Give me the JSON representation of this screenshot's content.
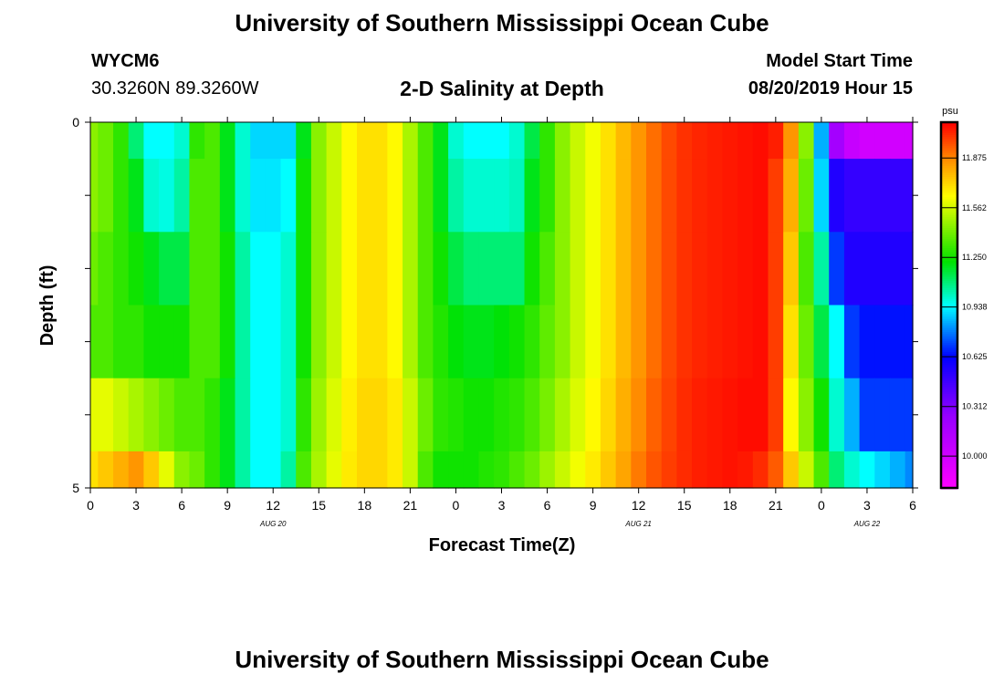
{
  "header": {
    "title": "University of Southern Mississippi Ocean Cube",
    "station": "WYCM6",
    "coords": "30.3260N 89.3260W",
    "subtitle": "2-D Salinity at Depth",
    "model_start_label": "Model Start Time",
    "model_start_value": "08/20/2019 Hour 15"
  },
  "footer": {
    "title": "University of Southern Mississippi Ocean Cube"
  },
  "chart_data": {
    "type": "heatmap",
    "title": "2-D Salinity at Depth",
    "xlabel": "Forecast Time(Z)",
    "ylabel": "Depth (ft)",
    "x_tick_labels": [
      "0",
      "3",
      "6",
      "9",
      "12",
      "15",
      "18",
      "21",
      "0",
      "3",
      "6",
      "9",
      "12",
      "15",
      "18",
      "21",
      "0",
      "3",
      "6"
    ],
    "x_range_hours": [
      0,
      54
    ],
    "date_labels": [
      {
        "text": "AUG 20",
        "hour": 12
      },
      {
        "text": "AUG 21",
        "hour": 36
      },
      {
        "text": "AUG 22",
        "hour": 51
      }
    ],
    "y_tick_labels": [
      "0",
      "5"
    ],
    "y_range_ft": [
      0,
      5
    ],
    "depth_layers": 5,
    "colorbar": {
      "unit": "psu",
      "tick_labels": [
        "11.875",
        "11.562",
        "11.250",
        "10.938",
        "10.625",
        "10.312",
        "10.000"
      ],
      "range": [
        9.8,
        12.1
      ]
    },
    "time_hours": [
      0,
      1,
      2,
      3,
      4,
      5,
      6,
      7,
      8,
      9,
      10,
      11,
      12,
      13,
      14,
      15,
      16,
      17,
      18,
      19,
      20,
      21,
      22,
      23,
      24,
      25,
      26,
      27,
      28,
      29,
      30,
      31,
      32,
      33,
      34,
      35,
      36,
      37,
      38,
      39,
      40,
      41,
      42,
      43,
      44,
      45,
      46,
      47,
      48,
      49,
      50,
      51,
      52,
      53,
      54
    ],
    "salinity": [
      [
        11.45,
        11.4,
        11.3,
        11.1,
        10.95,
        10.95,
        11.0,
        11.3,
        11.35,
        11.2,
        11.0,
        10.9,
        10.9,
        10.9,
        11.2,
        11.45,
        11.55,
        11.65,
        11.7,
        11.7,
        11.65,
        11.5,
        11.35,
        11.2,
        11.0,
        10.95,
        10.95,
        10.95,
        11.0,
        11.15,
        11.3,
        11.45,
        11.55,
        11.62,
        11.7,
        11.78,
        11.85,
        11.92,
        11.98,
        12.02,
        12.04,
        12.05,
        12.06,
        12.07,
        12.08,
        12.05,
        11.85,
        11.45,
        10.85,
        10.2,
        10.05,
        10.0,
        10.0,
        10.0,
        10.0
      ],
      [
        11.45,
        11.4,
        11.3,
        11.2,
        11.0,
        10.98,
        11.05,
        11.35,
        11.35,
        11.2,
        11.0,
        10.92,
        10.92,
        10.95,
        11.25,
        11.45,
        11.55,
        11.65,
        11.7,
        11.7,
        11.65,
        11.5,
        11.35,
        11.2,
        11.05,
        11.0,
        11.0,
        11.0,
        11.02,
        11.2,
        11.3,
        11.45,
        11.55,
        11.62,
        11.7,
        11.78,
        11.85,
        11.92,
        11.98,
        12.02,
        12.04,
        12.05,
        12.06,
        12.07,
        12.08,
        12.0,
        11.8,
        11.4,
        10.9,
        10.55,
        10.5,
        10.5,
        10.5,
        10.5,
        10.5
      ],
      [
        11.4,
        11.35,
        11.3,
        11.25,
        11.2,
        11.15,
        11.15,
        11.35,
        11.35,
        11.25,
        11.05,
        10.95,
        10.95,
        11.0,
        11.25,
        11.45,
        11.55,
        11.65,
        11.7,
        11.7,
        11.65,
        11.5,
        11.35,
        11.25,
        11.15,
        11.1,
        11.1,
        11.1,
        11.1,
        11.25,
        11.35,
        11.45,
        11.55,
        11.62,
        11.7,
        11.78,
        11.85,
        11.92,
        11.98,
        12.02,
        12.04,
        12.05,
        12.06,
        12.07,
        12.08,
        12.0,
        11.75,
        11.35,
        11.05,
        10.7,
        10.55,
        10.55,
        10.55,
        10.55,
        10.55
      ],
      [
        11.35,
        11.35,
        11.3,
        11.3,
        11.25,
        11.25,
        11.25,
        11.35,
        11.35,
        11.25,
        11.05,
        10.95,
        10.95,
        11.0,
        11.25,
        11.45,
        11.55,
        11.65,
        11.7,
        11.7,
        11.65,
        11.5,
        11.35,
        11.28,
        11.22,
        11.2,
        11.2,
        11.22,
        11.25,
        11.3,
        11.38,
        11.45,
        11.55,
        11.62,
        11.7,
        11.78,
        11.85,
        11.92,
        11.98,
        12.02,
        12.04,
        12.05,
        12.06,
        12.07,
        12.08,
        12.0,
        11.7,
        11.4,
        11.15,
        10.95,
        10.7,
        10.65,
        10.65,
        10.65,
        10.65
      ],
      [
        11.6,
        11.6,
        11.55,
        11.5,
        11.45,
        11.4,
        11.35,
        11.35,
        11.3,
        11.2,
        11.05,
        10.95,
        10.95,
        11.0,
        11.3,
        11.48,
        11.58,
        11.67,
        11.72,
        11.72,
        11.68,
        11.55,
        11.4,
        11.3,
        11.28,
        11.25,
        11.25,
        11.28,
        11.3,
        11.35,
        11.42,
        11.5,
        11.58,
        11.65,
        11.72,
        11.8,
        11.87,
        11.94,
        11.99,
        12.03,
        12.05,
        12.06,
        12.07,
        12.08,
        12.08,
        12.0,
        11.65,
        11.45,
        11.25,
        11.0,
        10.85,
        10.7,
        10.7,
        10.7,
        10.7
      ],
      [
        11.7,
        11.75,
        11.8,
        11.85,
        11.75,
        11.6,
        11.45,
        11.4,
        11.3,
        11.2,
        11.05,
        10.95,
        10.95,
        11.05,
        11.35,
        11.5,
        11.6,
        11.68,
        11.72,
        11.72,
        11.68,
        11.55,
        11.35,
        11.25,
        11.25,
        11.25,
        11.28,
        11.3,
        11.35,
        11.4,
        11.48,
        11.55,
        11.62,
        11.68,
        11.75,
        11.82,
        11.9,
        11.96,
        12.0,
        12.03,
        12.05,
        12.06,
        12.07,
        12.06,
        12.03,
        11.95,
        11.75,
        11.55,
        11.35,
        11.1,
        11.0,
        10.95,
        10.9,
        10.85,
        10.8
      ]
    ]
  }
}
